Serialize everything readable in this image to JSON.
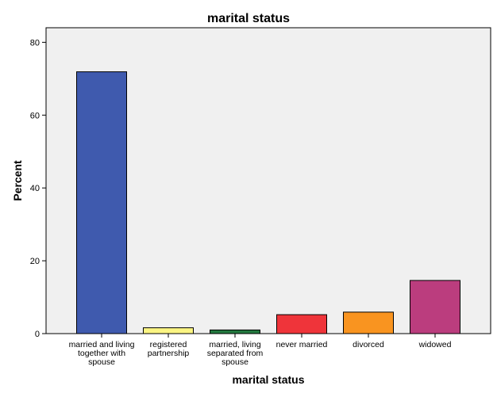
{
  "chart_data": {
    "type": "bar",
    "title": "marital status",
    "xlabel": "marital status",
    "ylabel": "Percent",
    "ylim": [
      0,
      84
    ],
    "yticks": [
      0,
      20,
      40,
      60,
      80
    ],
    "grid": false,
    "legend": "none",
    "categories": [
      [
        "married and living",
        "together with",
        "spouse"
      ],
      [
        "registered",
        "partnership"
      ],
      [
        "married, living",
        "separated from",
        "spouse"
      ],
      [
        "never married"
      ],
      [
        "divorced"
      ],
      [
        "widowed"
      ]
    ],
    "values": [
      71.9,
      1.6,
      1.0,
      5.2,
      5.9,
      14.6
    ],
    "colors": [
      "#3f5aae",
      "#fbf583",
      "#23793f",
      "#ef343a",
      "#f99420",
      "#bb3d7e"
    ],
    "plot_background": "#f0f0f0",
    "bar_edge_color": "#000000"
  }
}
